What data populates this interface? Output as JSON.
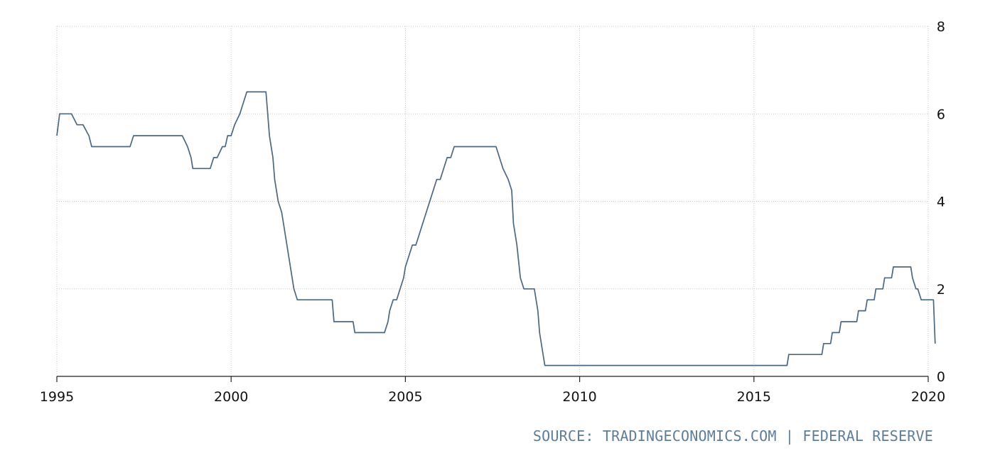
{
  "source_note": "SOURCE: TRADINGECONOMICS.COM | FEDERAL RESERVE",
  "colors": {
    "series": "#4a6784",
    "grid": "#c9c9c9",
    "text": "#111111",
    "source": "#5d7d9a"
  },
  "chart_data": {
    "type": "line",
    "title": "",
    "xlabel": "",
    "ylabel": "",
    "xlim": [
      1995,
      2020
    ],
    "ylim": [
      0,
      8
    ],
    "x_ticks": [
      "1995",
      "2000",
      "2005",
      "2010",
      "2015",
      "2020"
    ],
    "y_ticks": [
      "0",
      "2",
      "4",
      "6",
      "8"
    ],
    "y_axis_position": "right",
    "grid": true,
    "legend": "none",
    "series": [
      {
        "x": [
          1995.0,
          1995.08,
          1995.42,
          1995.58,
          1995.67,
          1995.75,
          1995.92,
          1996.0,
          1996.08,
          1996.25,
          1997.0,
          1997.1,
          1997.2,
          1997.3,
          1998.4,
          1998.6,
          1998.75,
          1998.85,
          1998.9,
          1999.4,
          1999.5,
          1999.6,
          1999.75,
          1999.83,
          1999.9,
          2000.0,
          2000.1,
          2000.25,
          2000.35,
          2000.45,
          2000.5,
          2001.0,
          2001.05,
          2001.1,
          2001.2,
          2001.25,
          2001.35,
          2001.45,
          2001.5,
          2001.6,
          2001.7,
          2001.8,
          2001.9,
          2002.0,
          2002.9,
          2002.95,
          2003.5,
          2003.55,
          2004.4,
          2004.5,
          2004.55,
          2004.65,
          2004.75,
          2004.85,
          2004.95,
          2005.0,
          2005.1,
          2005.2,
          2005.3,
          2005.4,
          2005.5,
          2005.6,
          2005.7,
          2005.8,
          2005.9,
          2006.0,
          2006.1,
          2006.2,
          2006.3,
          2006.4,
          2006.5,
          2007.6,
          2007.7,
          2007.8,
          2007.95,
          2008.05,
          2008.1,
          2008.2,
          2008.3,
          2008.4,
          2008.7,
          2008.8,
          2008.85,
          2009.0,
          2015.95,
          2016.0,
          2016.95,
          2017.0,
          2017.2,
          2017.25,
          2017.45,
          2017.5,
          2017.95,
          2018.0,
          2018.2,
          2018.25,
          2018.45,
          2018.5,
          2018.7,
          2018.75,
          2018.95,
          2019.0,
          2019.5,
          2019.55,
          2019.65,
          2019.7,
          2019.8,
          2020.0,
          2020.15,
          2020.2
        ],
        "y": [
          5.5,
          6.0,
          6.0,
          5.75,
          5.75,
          5.75,
          5.5,
          5.25,
          5.25,
          5.25,
          5.25,
          5.25,
          5.5,
          5.5,
          5.5,
          5.5,
          5.25,
          5.0,
          4.75,
          4.75,
          5.0,
          5.0,
          5.25,
          5.25,
          5.5,
          5.5,
          5.75,
          6.0,
          6.25,
          6.5,
          6.5,
          6.5,
          6.0,
          5.5,
          5.0,
          4.5,
          4.0,
          3.75,
          3.5,
          3.0,
          2.5,
          2.0,
          1.75,
          1.75,
          1.75,
          1.25,
          1.25,
          1.0,
          1.0,
          1.25,
          1.5,
          1.75,
          1.75,
          2.0,
          2.25,
          2.5,
          2.75,
          3.0,
          3.0,
          3.25,
          3.5,
          3.75,
          4.0,
          4.25,
          4.5,
          4.5,
          4.75,
          5.0,
          5.0,
          5.25,
          5.25,
          5.25,
          5.0,
          4.75,
          4.5,
          4.25,
          3.5,
          3.0,
          2.25,
          2.0,
          2.0,
          1.5,
          1.0,
          0.25,
          0.25,
          0.5,
          0.5,
          0.75,
          0.75,
          1.0,
          1.0,
          1.25,
          1.25,
          1.5,
          1.5,
          1.75,
          1.75,
          2.0,
          2.0,
          2.25,
          2.25,
          2.5,
          2.5,
          2.25,
          2.0,
          2.0,
          1.75,
          1.75,
          1.75,
          0.75
        ]
      }
    ]
  }
}
